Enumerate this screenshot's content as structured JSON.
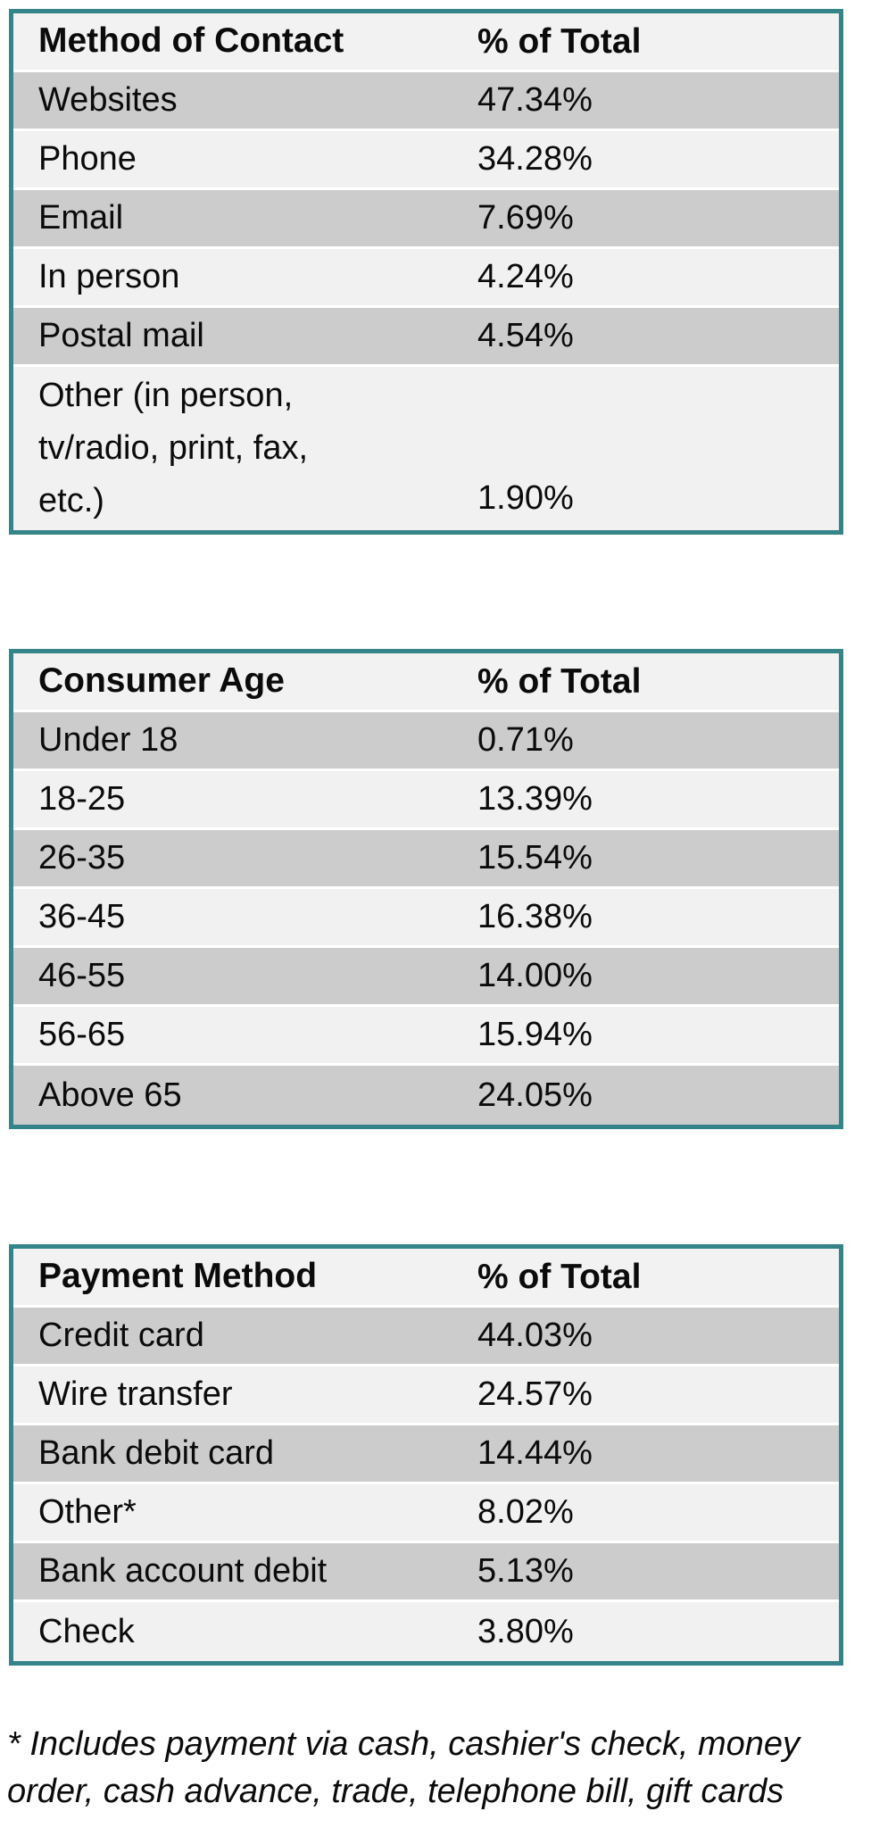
{
  "colors": {
    "page_bg": "#FFFFFF",
    "table_border": "#35848A",
    "header_bg": "#F2F2F3",
    "row_stripe_light": "#F1F1F2",
    "row_stripe_dark": "#CCCCCC",
    "text": "#0B0B0B"
  },
  "tables": [
    {
      "header": {
        "label": "Method of Contact",
        "value": "% of Total"
      },
      "rows": [
        {
          "label": "Websites",
          "value": "47.34%"
        },
        {
          "label": "Phone",
          "value": "34.28%"
        },
        {
          "label": "Email",
          "value": "7.69%"
        },
        {
          "label": "In person",
          "value": "4.24%"
        },
        {
          "label": "Postal mail",
          "value": "4.54%"
        },
        {
          "label": "Other (in person,\ntv/radio, print, fax,\netc.)",
          "value": "1.90%"
        }
      ]
    },
    {
      "header": {
        "label": "Consumer Age",
        "value": "% of Total"
      },
      "rows": [
        {
          "label": "Under 18",
          "value": "0.71%"
        },
        {
          "label": "18-25",
          "value": "13.39%"
        },
        {
          "label": "26-35",
          "value": "15.54%"
        },
        {
          "label": "36-45",
          "value": "16.38%"
        },
        {
          "label": "46-55",
          "value": "14.00%"
        },
        {
          "label": "56-65",
          "value": "15.94%"
        },
        {
          "label": "Above 65",
          "value": "24.05%"
        }
      ]
    },
    {
      "header": {
        "label": "Payment Method",
        "value": "% of Total"
      },
      "rows": [
        {
          "label": "Credit card",
          "value": "44.03%"
        },
        {
          "label": "Wire transfer",
          "value": "24.57%"
        },
        {
          "label": "Bank debit card",
          "value": "14.44%"
        },
        {
          "label": "Other*",
          "value": "8.02%"
        },
        {
          "label": "Bank account debit",
          "value": "5.13%"
        },
        {
          "label": "Check",
          "value": "3.80%"
        }
      ]
    }
  ],
  "footnote": "* Includes payment via cash, cashier's check, money\norder, cash advance, trade, telephone bill, gift cards"
}
